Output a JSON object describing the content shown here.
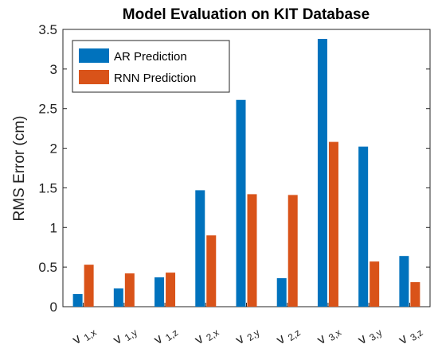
{
  "chart_data": {
    "type": "bar",
    "title": "Model Evaluation on KIT Database",
    "ylabel": "RMS Error (cm)",
    "xlabel": "",
    "ylim": [
      0,
      3.5
    ],
    "yticks": [
      "0",
      "0.5",
      "1",
      "1.5",
      "2",
      "2.5",
      "3",
      "3.5"
    ],
    "categories": [
      {
        "main": "v",
        "sub": "1,x"
      },
      {
        "main": "v",
        "sub": "1,y"
      },
      {
        "main": "v",
        "sub": "1,z"
      },
      {
        "main": "v",
        "sub": "2,x"
      },
      {
        "main": "v",
        "sub": "2,y"
      },
      {
        "main": "v",
        "sub": "2,z"
      },
      {
        "main": "v",
        "sub": "3,x"
      },
      {
        "main": "v",
        "sub": "3,y"
      },
      {
        "main": "v",
        "sub": "3,z"
      }
    ],
    "series": [
      {
        "name": "AR Prediction",
        "color": "#0072BD",
        "values": [
          0.16,
          0.23,
          0.37,
          1.47,
          2.61,
          0.36,
          3.38,
          2.02,
          0.64
        ]
      },
      {
        "name": "RNN Prediction",
        "color": "#D95319",
        "values": [
          0.53,
          0.42,
          0.43,
          0.9,
          1.42,
          1.41,
          2.08,
          0.57,
          0.31
        ]
      }
    ],
    "grid": false,
    "legend_position": "top-left"
  }
}
